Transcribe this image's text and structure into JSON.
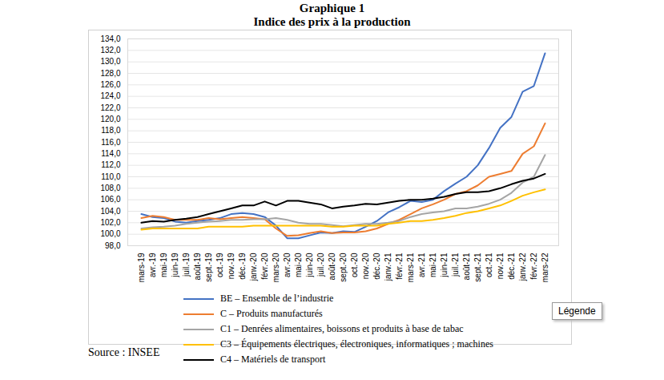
{
  "chart_data": {
    "type": "line",
    "title": "Graphique 1",
    "subtitle": "Indice des prix à la production",
    "source": "Source : INSEE",
    "legend": "bottom",
    "legend_box_text": "Légende",
    "grid": true,
    "categories": [
      "mars-19",
      "avr.-19",
      "mai-19",
      "juin-19",
      "juil.-19",
      "août-19",
      "sept.-19",
      "oct.-19",
      "nov.-19",
      "déc.-19",
      "janv.-20",
      "févr.-20",
      "mars-20",
      "avr.-20",
      "mai-20",
      "juin-20",
      "juil.-20",
      "août-20",
      "sept.-20",
      "oct.-20",
      "nov.-20",
      "déc.-20",
      "janv.-21",
      "févr.-21",
      "mars-21",
      "avr.-21",
      "mai-21",
      "juin-21",
      "juil.-21",
      "août-21",
      "sept.-21",
      "oct.-21",
      "nov.-21",
      "déc.-21",
      "janv.-22",
      "févr.-22",
      "mars-22"
    ],
    "ylim": [
      98,
      134
    ],
    "yticks": [
      {
        "value": 98,
        "label": "98,0"
      },
      {
        "value": 100,
        "label": "100,0"
      },
      {
        "value": 102,
        "label": "102,0"
      },
      {
        "value": 104,
        "label": "104,0"
      },
      {
        "value": 106,
        "label": "106,0"
      },
      {
        "value": 108,
        "label": "108,0"
      },
      {
        "value": 110,
        "label": "110,0"
      },
      {
        "value": 112,
        "label": "112,0"
      },
      {
        "value": 114,
        "label": "114,0"
      },
      {
        "value": 116,
        "label": "116,0"
      },
      {
        "value": 118,
        "label": "118,0"
      },
      {
        "value": 120,
        "label": "120,0"
      },
      {
        "value": 122,
        "label": "122,0"
      },
      {
        "value": 124,
        "label": "124,0"
      },
      {
        "value": 126,
        "label": "126,0"
      },
      {
        "value": 128,
        "label": "128,0"
      },
      {
        "value": 130,
        "label": "130,0"
      },
      {
        "value": 132,
        "label": "132,0"
      },
      {
        "value": 134,
        "label": "134,0"
      }
    ],
    "series": [
      {
        "name": "BE – Ensemble de l’industrie",
        "color": "#4472c4",
        "values": [
          103.5,
          103.0,
          102.8,
          102.2,
          102.0,
          102.3,
          102.5,
          102.8,
          103.5,
          103.7,
          103.5,
          103.0,
          101.5,
          99.3,
          99.3,
          99.8,
          100.3,
          100.2,
          100.5,
          100.4,
          101.3,
          102.3,
          103.8,
          104.7,
          105.8,
          105.6,
          106.0,
          107.5,
          108.8,
          110.0,
          112.0,
          115.0,
          118.5,
          120.4,
          124.8,
          125.8,
          131.5
        ]
      },
      {
        "name": "C – Produits manufacturés",
        "color": "#ed7d31",
        "values": [
          102.8,
          103.2,
          103.0,
          102.5,
          102.5,
          102.5,
          102.8,
          102.6,
          102.8,
          103.0,
          102.8,
          102.6,
          101.0,
          99.7,
          99.8,
          100.2,
          100.5,
          100.2,
          100.3,
          100.3,
          100.5,
          101.0,
          101.8,
          102.5,
          103.5,
          104.5,
          105.2,
          106.0,
          107.0,
          107.5,
          108.5,
          110.0,
          110.5,
          111.0,
          114.0,
          115.3,
          119.3
        ]
      },
      {
        "name": "C1 – Denrées alimentaires, boissons et produits à base de tabac",
        "color": "#a5a5a5",
        "values": [
          101.0,
          101.2,
          101.3,
          101.5,
          101.8,
          102.0,
          102.2,
          102.3,
          102.5,
          102.5,
          102.6,
          102.6,
          102.8,
          102.5,
          102.0,
          101.8,
          101.8,
          101.6,
          101.4,
          101.6,
          101.8,
          101.8,
          102.0,
          102.3,
          103.0,
          103.5,
          103.8,
          104.0,
          104.5,
          104.5,
          104.8,
          105.3,
          106.0,
          107.2,
          109.0,
          110.0,
          113.8
        ]
      },
      {
        "name": "C3 – Équipements électriques, électroniques, informatiques ; machines",
        "color": "#ffc000",
        "values": [
          100.8,
          101.0,
          101.0,
          101.0,
          101.0,
          101.0,
          101.3,
          101.3,
          101.3,
          101.3,
          101.5,
          101.5,
          101.5,
          101.5,
          101.5,
          101.5,
          101.5,
          101.3,
          101.3,
          101.5,
          101.5,
          101.5,
          101.8,
          102.0,
          102.3,
          102.3,
          102.5,
          102.8,
          103.2,
          103.7,
          104.0,
          104.5,
          105.0,
          105.8,
          106.7,
          107.3,
          107.8
        ]
      },
      {
        "name": "C4 – Matériels de transport",
        "color": "#000000",
        "values": [
          102.0,
          102.3,
          102.2,
          102.5,
          102.7,
          103.0,
          103.5,
          104.0,
          104.5,
          105.0,
          105.0,
          105.7,
          105.0,
          105.8,
          105.8,
          105.5,
          105.2,
          104.5,
          104.8,
          105.0,
          105.3,
          105.2,
          105.5,
          105.8,
          106.0,
          106.0,
          106.2,
          106.5,
          107.0,
          107.3,
          107.3,
          107.5,
          108.0,
          108.7,
          109.3,
          109.7,
          110.5
        ]
      }
    ]
  }
}
